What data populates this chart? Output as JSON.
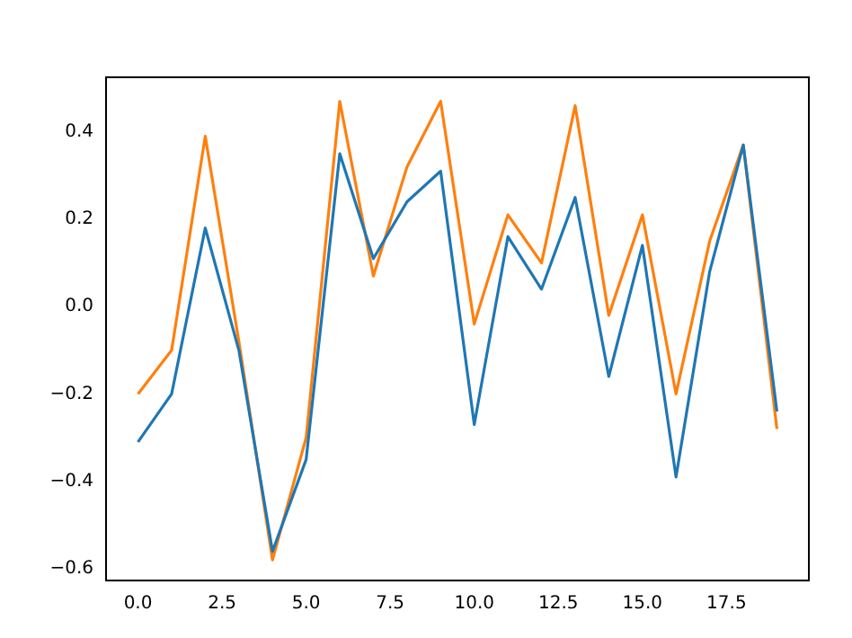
{
  "chart_data": {
    "type": "line",
    "x": [
      0,
      1,
      2,
      3,
      4,
      5,
      6,
      7,
      8,
      9,
      10,
      11,
      12,
      13,
      14,
      15,
      16,
      17,
      18,
      19
    ],
    "series": [
      {
        "color": "#1f77b4",
        "values": [
          -0.31,
          -0.2,
          0.18,
          -0.1,
          -0.56,
          -0.35,
          0.35,
          0.11,
          0.24,
          0.31,
          -0.27,
          0.16,
          0.04,
          0.25,
          -0.16,
          0.14,
          -0.39,
          0.08,
          0.37,
          -0.24
        ]
      },
      {
        "color": "#ff7f0e",
        "values": [
          -0.2,
          -0.1,
          0.39,
          -0.08,
          -0.58,
          -0.3,
          0.47,
          0.07,
          0.32,
          0.47,
          -0.04,
          0.21,
          0.1,
          0.46,
          -0.02,
          0.21,
          -0.2,
          0.15,
          0.37,
          -0.28
        ]
      }
    ],
    "xlim": [
      -0.95,
      19.95
    ],
    "xticks": [
      {
        "value": 0,
        "label": "0.0"
      },
      {
        "value": 2.5,
        "label": "2.5"
      },
      {
        "value": 5,
        "label": "5.0"
      },
      {
        "value": 7.5,
        "label": "7.5"
      },
      {
        "value": 10,
        "label": "10.0"
      },
      {
        "value": 12.5,
        "label": "12.5"
      },
      {
        "value": 15,
        "label": "15.0"
      },
      {
        "value": 17.5,
        "label": "17.5"
      }
    ],
    "ylim": [
      -0.627,
      0.525
    ],
    "yticks": [
      {
        "value": -0.6,
        "label": "−0.6"
      },
      {
        "value": -0.4,
        "label": "−0.4"
      },
      {
        "value": -0.2,
        "label": "−0.2"
      },
      {
        "value": 0,
        "label": "0.0"
      },
      {
        "value": 0.2,
        "label": "0.2"
      },
      {
        "value": 0.4,
        "label": "0.4"
      }
    ],
    "grid": false,
    "legend": false
  }
}
